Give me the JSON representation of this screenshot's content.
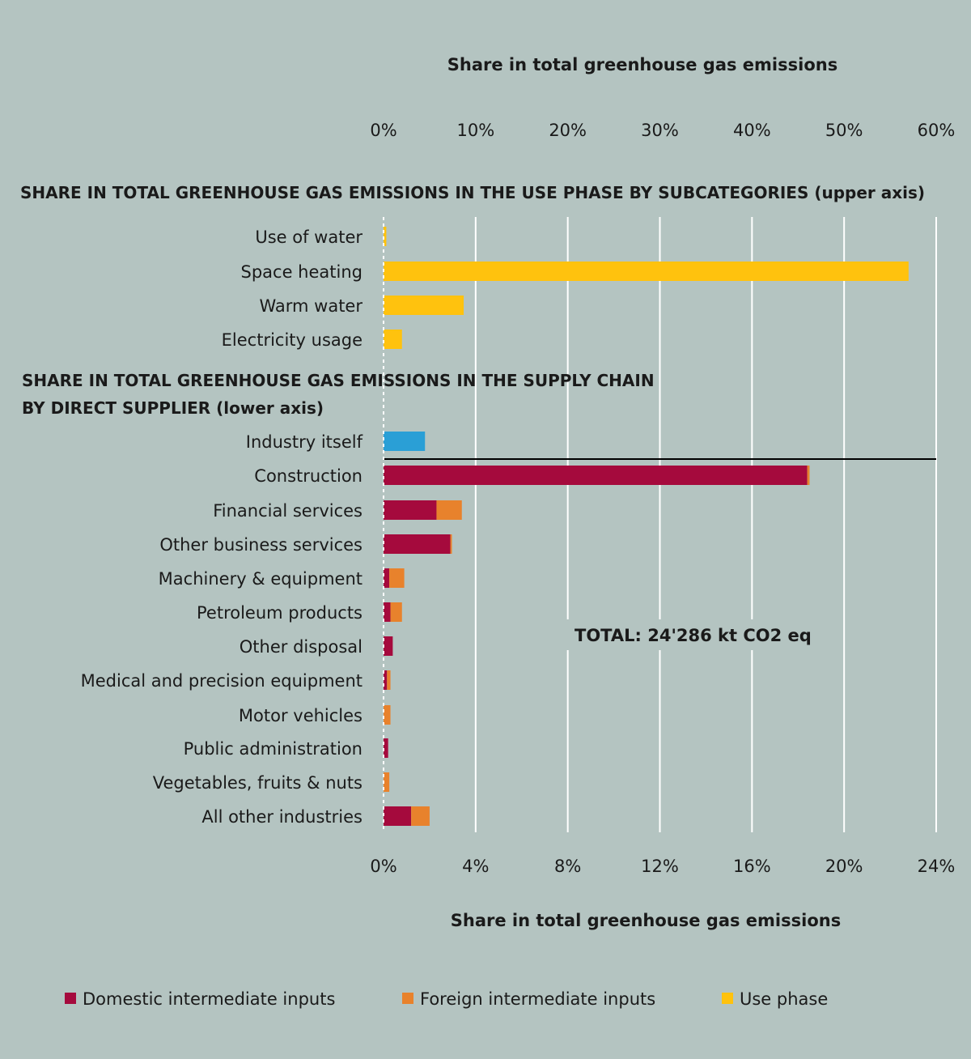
{
  "chart_data": {
    "type": "bar",
    "orientation": "horizontal",
    "stacked": true,
    "colors": {
      "domestic": "#a50a3d",
      "foreign": "#e8822c",
      "use_phase": "#ffc20e",
      "industry": "#2a9fd6",
      "grid": "#ffffff",
      "background": "#b4c4c1"
    },
    "upper_axis": {
      "title": "Share in total greenhouse gas emissions",
      "range": [
        0,
        60
      ],
      "ticks": [
        "0%",
        "10%",
        "20%",
        "30%",
        "40%",
        "50%",
        "60%"
      ]
    },
    "lower_axis": {
      "title": "Share in total greenhouse gas emissions",
      "range": [
        0,
        24
      ],
      "ticks": [
        "0%",
        "4%",
        "8%",
        "12%",
        "16%",
        "20%",
        "24%"
      ]
    },
    "use_phase_section": {
      "title": "SHARE IN TOTAL GREENHOUSE GAS EMISSIONS IN THE USE PHASE BY SUBCATEGORIES (upper axis)",
      "axis": "upper",
      "categories": [
        "Use of water",
        "Space heating",
        "Warm water",
        "Electricity usage"
      ],
      "series": [
        {
          "name": "Use phase",
          "key": "use_phase",
          "values": [
            0.3,
            57.0,
            8.7,
            2.0
          ]
        }
      ]
    },
    "supply_chain_section": {
      "title_lines": [
        "SHARE IN TOTAL GREENHOUSE GAS EMISSIONS IN THE SUPPLY CHAIN",
        "BY DIRECT SUPPLIER (lower axis)"
      ],
      "axis": "lower",
      "categories": [
        "Industry itself",
        "Construction",
        "Financial services",
        "Other business services",
        "Machinery & equipment",
        "Petroleum products",
        "Other disposal",
        "Medical and precision equipment",
        "Motor vehicles",
        "Public administration",
        "Vegetables, fruits & nuts",
        "All other industries"
      ],
      "series": [
        {
          "name": "Domestic intermediate inputs",
          "key": "domestic",
          "values": [
            0,
            18.4,
            2.3,
            2.9,
            0.25,
            0.3,
            0.4,
            0.15,
            0,
            0.2,
            0,
            1.2
          ]
        },
        {
          "name": "Foreign intermediate inputs",
          "key": "foreign",
          "values": [
            0,
            0.1,
            1.1,
            0.07,
            0.65,
            0.5,
            0,
            0.15,
            0.3,
            0,
            0.25,
            0.8
          ]
        },
        {
          "name": "",
          "key": "industry",
          "values": [
            1.8,
            0,
            0,
            0,
            0,
            0,
            0,
            0,
            0,
            0,
            0,
            0
          ]
        }
      ]
    },
    "annotation": "TOTAL: 24'286 kt CO2 eq",
    "legend": [
      {
        "label": "Domestic intermediate inputs",
        "key": "domestic"
      },
      {
        "label": "Foreign intermediate inputs",
        "key": "foreign"
      },
      {
        "label": "Use phase",
        "key": "use_phase"
      }
    ],
    "legend_position": "bottom",
    "grid": true
  }
}
